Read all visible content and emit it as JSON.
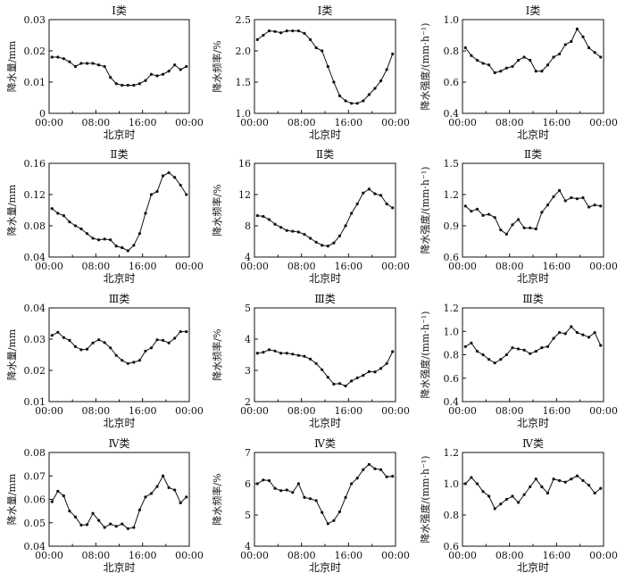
{
  "figure": {
    "xlabel": "北京时",
    "xticks": [
      "00:00",
      "08:00",
      "16:00",
      "00:00"
    ]
  },
  "chart_data": [
    {
      "type": "line",
      "title": "Ⅰ类",
      "ylabel": "降水量/mm",
      "ylim": [
        0,
        0.03
      ],
      "yticks": [
        "0",
        "0.01",
        "0.02",
        "0.03"
      ],
      "x": [
        1,
        2,
        3,
        4,
        5,
        6,
        7,
        8,
        9,
        10,
        11,
        12,
        13,
        14,
        15,
        16,
        17,
        18,
        19,
        20,
        21,
        22,
        23,
        24
      ],
      "values": [
        0.018,
        0.018,
        0.0175,
        0.0165,
        0.015,
        0.016,
        0.016,
        0.016,
        0.0155,
        0.015,
        0.0115,
        0.0095,
        0.009,
        0.009,
        0.009,
        0.0095,
        0.0105,
        0.0125,
        0.012,
        0.0125,
        0.0135,
        0.0155,
        0.014,
        0.015
      ]
    },
    {
      "type": "line",
      "title": "Ⅰ类",
      "ylabel": "降水频率/%",
      "ylim": [
        1.0,
        2.5
      ],
      "yticks": [
        "1.0",
        "1.5",
        "2.0",
        "2.5"
      ],
      "x": [
        1,
        2,
        3,
        4,
        5,
        6,
        7,
        8,
        9,
        10,
        11,
        12,
        13,
        14,
        15,
        16,
        17,
        18,
        19,
        20,
        21,
        22,
        23,
        24
      ],
      "values": [
        2.18,
        2.25,
        2.32,
        2.31,
        2.29,
        2.32,
        2.32,
        2.32,
        2.28,
        2.18,
        2.05,
        2.0,
        1.75,
        1.5,
        1.28,
        1.2,
        1.16,
        1.16,
        1.2,
        1.3,
        1.4,
        1.52,
        1.7,
        1.95
      ]
    },
    {
      "type": "line",
      "title": "Ⅰ类",
      "ylabel": "降水强度/(mm·h⁻¹)",
      "ylim": [
        0.4,
        1.0
      ],
      "yticks": [
        "0.4",
        "0.6",
        "0.8",
        "1.0"
      ],
      "x": [
        1,
        2,
        3,
        4,
        5,
        6,
        7,
        8,
        9,
        10,
        11,
        12,
        13,
        14,
        15,
        16,
        17,
        18,
        19,
        20,
        21,
        22,
        23,
        24
      ],
      "values": [
        0.82,
        0.77,
        0.74,
        0.72,
        0.71,
        0.66,
        0.67,
        0.69,
        0.7,
        0.74,
        0.76,
        0.74,
        0.67,
        0.67,
        0.71,
        0.76,
        0.78,
        0.84,
        0.86,
        0.94,
        0.89,
        0.82,
        0.79,
        0.76
      ]
    },
    {
      "type": "line",
      "title": "Ⅱ类",
      "ylabel": "降水量/mm",
      "ylim": [
        0.04,
        0.16
      ],
      "yticks": [
        "0.04",
        "0.08",
        "0.12",
        "0.16"
      ],
      "x": [
        1,
        2,
        3,
        4,
        5,
        6,
        7,
        8,
        9,
        10,
        11,
        12,
        13,
        14,
        15,
        16,
        17,
        18,
        19,
        20,
        21,
        22,
        23,
        24
      ],
      "values": [
        0.102,
        0.096,
        0.093,
        0.085,
        0.08,
        0.076,
        0.07,
        0.064,
        0.062,
        0.063,
        0.062,
        0.054,
        0.052,
        0.048,
        0.055,
        0.07,
        0.096,
        0.12,
        0.124,
        0.144,
        0.148,
        0.142,
        0.132,
        0.12
      ]
    },
    {
      "type": "line",
      "title": "Ⅱ类",
      "ylabel": "降水频率/%",
      "ylim": [
        4,
        16
      ],
      "yticks": [
        "4",
        "8",
        "12",
        "16"
      ],
      "x": [
        1,
        2,
        3,
        4,
        5,
        6,
        7,
        8,
        9,
        10,
        11,
        12,
        13,
        14,
        15,
        16,
        17,
        18,
        19,
        20,
        21,
        22,
        23,
        24
      ],
      "values": [
        9.3,
        9.2,
        8.8,
        8.2,
        7.8,
        7.4,
        7.3,
        7.2,
        6.9,
        6.4,
        5.9,
        5.5,
        5.4,
        5.8,
        6.7,
        8.0,
        9.6,
        10.8,
        12.2,
        12.7,
        12.1,
        11.9,
        10.8,
        10.3
      ]
    },
    {
      "type": "line",
      "title": "Ⅱ类",
      "ylabel": "降水强度/(mm·h⁻¹)",
      "ylim": [
        0.6,
        1.5
      ],
      "yticks": [
        "0.6",
        "0.9",
        "1.2",
        "1.5"
      ],
      "x": [
        1,
        2,
        3,
        4,
        5,
        6,
        7,
        8,
        9,
        10,
        11,
        12,
        13,
        14,
        15,
        16,
        17,
        18,
        19,
        20,
        21,
        22,
        23,
        24
      ],
      "values": [
        1.09,
        1.04,
        1.06,
        1.0,
        1.01,
        0.98,
        0.86,
        0.82,
        0.91,
        0.96,
        0.88,
        0.88,
        0.87,
        1.03,
        1.1,
        1.18,
        1.24,
        1.14,
        1.17,
        1.16,
        1.17,
        1.08,
        1.1,
        1.09
      ]
    },
    {
      "type": "line",
      "title": "Ⅲ类",
      "ylabel": "降水量/mm",
      "ylim": [
        0.01,
        0.04
      ],
      "yticks": [
        "0.01",
        "0.02",
        "0.03",
        "0.04"
      ],
      "x": [
        1,
        2,
        3,
        4,
        5,
        6,
        7,
        8,
        9,
        10,
        11,
        12,
        13,
        14,
        15,
        16,
        17,
        18,
        19,
        20,
        21,
        22,
        23,
        24
      ],
      "values": [
        0.0312,
        0.0322,
        0.0305,
        0.0296,
        0.0276,
        0.0266,
        0.0268,
        0.0288,
        0.0298,
        0.0289,
        0.0272,
        0.0248,
        0.0232,
        0.0222,
        0.0226,
        0.0232,
        0.0262,
        0.0272,
        0.0298,
        0.0296,
        0.0288,
        0.0303,
        0.0324,
        0.0324
      ]
    },
    {
      "type": "line",
      "title": "Ⅲ类",
      "ylabel": "降水频率/%",
      "ylim": [
        2,
        5
      ],
      "yticks": [
        "2",
        "3",
        "4",
        "5"
      ],
      "x": [
        1,
        2,
        3,
        4,
        5,
        6,
        7,
        8,
        9,
        10,
        11,
        12,
        13,
        14,
        15,
        16,
        17,
        18,
        19,
        20,
        21,
        22,
        23,
        24
      ],
      "values": [
        3.55,
        3.58,
        3.66,
        3.62,
        3.55,
        3.55,
        3.52,
        3.48,
        3.45,
        3.36,
        3.22,
        3.02,
        2.78,
        2.56,
        2.58,
        2.5,
        2.66,
        2.76,
        2.84,
        2.96,
        2.95,
        3.06,
        3.22,
        3.6
      ]
    },
    {
      "type": "line",
      "title": "Ⅲ类",
      "ylabel": "降水强度/(mm·h⁻¹)",
      "ylim": [
        0.4,
        1.2
      ],
      "yticks": [
        "0.4",
        "0.6",
        "0.8",
        "1.0",
        "1.2"
      ],
      "x": [
        1,
        2,
        3,
        4,
        5,
        6,
        7,
        8,
        9,
        10,
        11,
        12,
        13,
        14,
        15,
        16,
        17,
        18,
        19,
        20,
        21,
        22,
        23,
        24
      ],
      "values": [
        0.87,
        0.9,
        0.83,
        0.8,
        0.76,
        0.73,
        0.76,
        0.8,
        0.86,
        0.85,
        0.84,
        0.81,
        0.83,
        0.86,
        0.87,
        0.94,
        0.99,
        0.98,
        1.04,
        0.99,
        0.97,
        0.95,
        0.99,
        0.88
      ]
    },
    {
      "type": "line",
      "title": "Ⅳ类",
      "ylabel": "降水量/mm",
      "ylim": [
        0.04,
        0.08
      ],
      "yticks": [
        "0.04",
        "0.05",
        "0.06",
        "0.07",
        "0.08"
      ],
      "x": [
        1,
        2,
        3,
        4,
        5,
        6,
        7,
        8,
        9,
        10,
        11,
        12,
        13,
        14,
        15,
        16,
        17,
        18,
        19,
        20,
        21,
        22,
        23,
        24
      ],
      "values": [
        0.059,
        0.0635,
        0.0615,
        0.055,
        0.0525,
        0.049,
        0.0492,
        0.054,
        0.051,
        0.048,
        0.0495,
        0.0485,
        0.0495,
        0.0475,
        0.048,
        0.0555,
        0.061,
        0.0625,
        0.0655,
        0.07,
        0.065,
        0.064,
        0.0585,
        0.061
      ]
    },
    {
      "type": "line",
      "title": "Ⅳ类",
      "ylabel": "降水频率/%",
      "ylim": [
        4,
        7
      ],
      "yticks": [
        "4",
        "5",
        "6",
        "7"
      ],
      "x": [
        1,
        2,
        3,
        4,
        5,
        6,
        7,
        8,
        9,
        10,
        11,
        12,
        13,
        14,
        15,
        16,
        17,
        18,
        19,
        20,
        21,
        22,
        23,
        24
      ],
      "values": [
        6.0,
        6.12,
        6.1,
        5.85,
        5.78,
        5.8,
        5.72,
        6.0,
        5.56,
        5.52,
        5.46,
        5.08,
        4.72,
        4.82,
        5.1,
        5.56,
        6.0,
        6.18,
        6.45,
        6.62,
        6.48,
        6.45,
        6.22,
        6.24
      ]
    },
    {
      "type": "line",
      "title": "Ⅳ类",
      "ylabel": "降水强度/(mm·h⁻¹)",
      "ylim": [
        0.6,
        1.2
      ],
      "yticks": [
        "0.6",
        "0.8",
        "1.0",
        "1.2"
      ],
      "x": [
        1,
        2,
        3,
        4,
        5,
        6,
        7,
        8,
        9,
        10,
        11,
        12,
        13,
        14,
        15,
        16,
        17,
        18,
        19,
        20,
        21,
        22,
        23,
        24
      ],
      "values": [
        1.0,
        1.04,
        1.0,
        0.95,
        0.92,
        0.84,
        0.87,
        0.9,
        0.92,
        0.88,
        0.93,
        0.98,
        1.03,
        0.98,
        0.94,
        1.03,
        1.02,
        1.01,
        1.03,
        1.05,
        1.02,
        0.99,
        0.94,
        0.97
      ]
    }
  ]
}
